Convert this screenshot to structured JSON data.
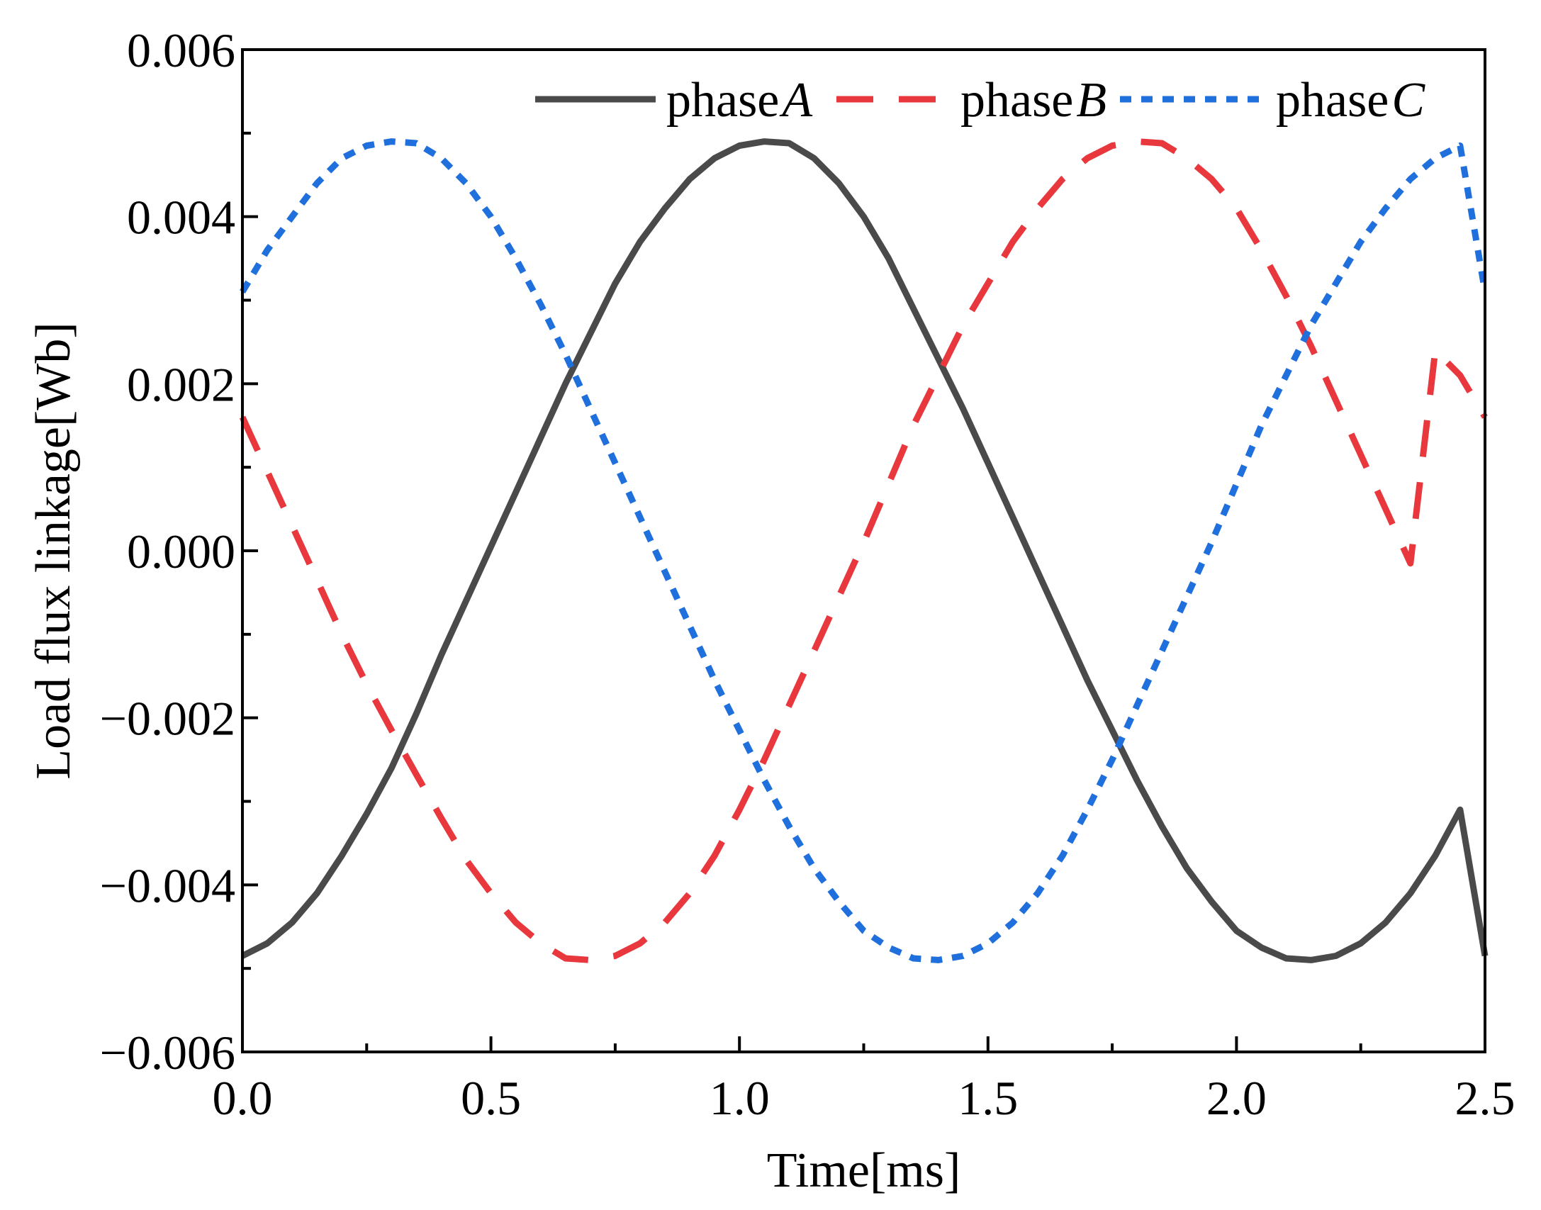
{
  "chart_data": {
    "type": "line",
    "title": "",
    "xlabel": "Time[ms]",
    "ylabel": "Load flux linkage[Wb]",
    "xlim": [
      0.0,
      2.5
    ],
    "ylim": [
      -0.006,
      0.006
    ],
    "x_ticks": [
      "0.0",
      "0.5",
      "1.0",
      "1.5",
      "2.0",
      "2.5"
    ],
    "y_ticks": [
      "0.006",
      "0.004",
      "0.002",
      "0.000",
      "−0.002",
      "−0.004",
      "−0.006"
    ],
    "grid": false,
    "legend_position": "top-right",
    "series": [
      {
        "name": "phase A",
        "prefix": "phase",
        "symbol": "A",
        "color": "#4a4a4a",
        "style": "solid",
        "x": [
          0.0,
          0.05,
          0.1,
          0.15,
          0.2,
          0.25,
          0.3,
          0.35,
          0.4,
          0.45,
          0.5,
          0.55,
          0.6,
          0.65,
          0.7,
          0.75,
          0.8,
          0.85,
          0.9,
          0.95,
          1.0,
          1.05,
          1.1,
          1.15,
          1.2,
          1.25,
          1.3,
          1.35,
          1.4,
          1.45,
          1.5,
          1.55,
          1.6,
          1.65,
          1.7,
          1.75,
          1.8,
          1.85,
          1.9,
          1.95,
          2.0,
          2.05,
          2.1,
          2.15,
          2.2,
          2.25,
          2.3,
          2.35,
          2.4,
          2.45,
          2.5
        ],
        "y": [
          -0.00485,
          -0.0047,
          -0.00445,
          -0.0041,
          -0.00365,
          -0.00315,
          -0.0026,
          -0.00195,
          -0.00125,
          -0.0006,
          5e-05,
          0.0007,
          0.00135,
          0.002,
          0.0026,
          0.0032,
          0.0037,
          0.0041,
          0.00445,
          0.0047,
          0.00485,
          0.0049,
          0.00488,
          0.0047,
          0.0044,
          0.004,
          0.0035,
          0.0029,
          0.0023,
          0.0017,
          0.00105,
          0.0004,
          -0.00025,
          -0.0009,
          -0.00155,
          -0.00215,
          -0.00275,
          -0.0033,
          -0.0038,
          -0.0042,
          -0.00455,
          -0.00475,
          -0.00488,
          -0.0049,
          -0.00485,
          -0.0047,
          -0.00445,
          -0.0041,
          -0.00365,
          -0.0031,
          -0.00485
        ]
      },
      {
        "name": "phase B",
        "prefix": "phase",
        "symbol": "B",
        "color": "#e8383d",
        "style": "dashed",
        "x": [
          0.0,
          0.05,
          0.1,
          0.15,
          0.2,
          0.25,
          0.3,
          0.35,
          0.4,
          0.45,
          0.5,
          0.55,
          0.6,
          0.65,
          0.7,
          0.75,
          0.8,
          0.85,
          0.9,
          0.95,
          1.0,
          1.05,
          1.1,
          1.15,
          1.2,
          1.25,
          1.3,
          1.35,
          1.4,
          1.45,
          1.5,
          1.55,
          1.6,
          1.65,
          1.7,
          1.75,
          1.8,
          1.85,
          1.9,
          1.95,
          2.0,
          2.05,
          2.1,
          2.15,
          2.2,
          2.25,
          2.3,
          2.35,
          2.4,
          2.45,
          2.5
        ],
        "y": [
          0.0016,
          0.00095,
          0.0003,
          -0.00035,
          -0.001,
          -0.0016,
          -0.00215,
          -0.00268,
          -0.0032,
          -0.0037,
          -0.0041,
          -0.00445,
          -0.0047,
          -0.00488,
          -0.0049,
          -0.00485,
          -0.0047,
          -0.00445,
          -0.0041,
          -0.00365,
          -0.0031,
          -0.0025,
          -0.00185,
          -0.0012,
          -0.00055,
          0.0001,
          0.0008,
          0.0015,
          0.0021,
          0.0027,
          0.0032,
          0.0037,
          0.0041,
          0.00445,
          0.0047,
          0.00485,
          0.0049,
          0.00488,
          0.0047,
          0.00445,
          0.0041,
          0.0036,
          0.00305,
          0.00245,
          0.0018,
          0.00115,
          0.0005,
          -0.00015,
          0.0024,
          0.0021,
          0.0016
        ]
      },
      {
        "name": "phase C",
        "prefix": "phase",
        "symbol": "C",
        "color": "#1f6fdc",
        "style": "dotted",
        "x": [
          0.0,
          0.05,
          0.1,
          0.15,
          0.2,
          0.25,
          0.3,
          0.35,
          0.4,
          0.45,
          0.5,
          0.55,
          0.6,
          0.65,
          0.7,
          0.75,
          0.8,
          0.85,
          0.9,
          0.95,
          1.0,
          1.05,
          1.1,
          1.15,
          1.2,
          1.25,
          1.3,
          1.35,
          1.4,
          1.45,
          1.5,
          1.55,
          1.6,
          1.65,
          1.7,
          1.75,
          1.8,
          1.85,
          1.9,
          1.95,
          2.0,
          2.05,
          2.1,
          2.15,
          2.2,
          2.25,
          2.3,
          2.35,
          2.4,
          2.45,
          2.5
        ],
        "y": [
          0.0031,
          0.0036,
          0.004,
          0.0044,
          0.0047,
          0.00485,
          0.0049,
          0.00488,
          0.0047,
          0.0044,
          0.004,
          0.0035,
          0.00295,
          0.00235,
          0.0017,
          0.00105,
          0.0004,
          -0.00025,
          -0.0009,
          -0.00155,
          -0.00215,
          -0.00275,
          -0.0033,
          -0.0038,
          -0.0042,
          -0.00455,
          -0.00475,
          -0.00488,
          -0.0049,
          -0.00485,
          -0.0047,
          -0.00445,
          -0.0041,
          -0.00365,
          -0.0031,
          -0.0025,
          -0.00185,
          -0.0012,
          -0.00055,
          0.0001,
          0.0008,
          0.0015,
          0.0021,
          0.0027,
          0.0032,
          0.0037,
          0.0041,
          0.00445,
          0.0047,
          0.00485,
          0.0031
        ]
      }
    ]
  }
}
